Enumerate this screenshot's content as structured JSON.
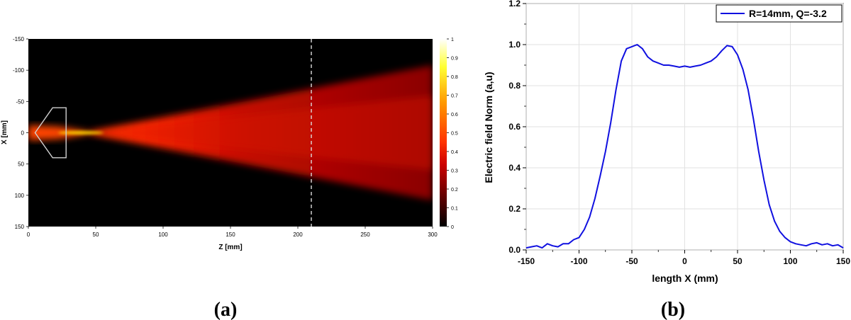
{
  "panel_a": {
    "caption": "(a)",
    "chart_data": {
      "type": "heatmap",
      "xlabel": "Z [mm]",
      "ylabel": "X [mm]",
      "xlim": [
        0,
        300
      ],
      "ylim": [
        -150,
        150
      ],
      "x_ticks": [
        "0",
        "50",
        "100",
        "150",
        "200",
        "250",
        "300"
      ],
      "y_ticks": [
        "-150",
        "-100",
        "-50",
        "0",
        "50",
        "100",
        "150"
      ],
      "colorbar": {
        "range": [
          0,
          1
        ],
        "ticks": [
          "1",
          "0.9",
          "0.8",
          "0.7",
          "0.6",
          "0.5",
          "0.4",
          "0.3",
          "0.2",
          "0.1",
          "0"
        ],
        "colormap": "hot"
      },
      "lens_outline": {
        "z_range": [
          5,
          28
        ],
        "x_range": [
          -40,
          40
        ],
        "color": "#d0d0d0"
      },
      "focus_z": 45,
      "beam_half_width_at_300": 108,
      "dashed_line_z": 210
    }
  },
  "panel_b": {
    "caption": "(b)",
    "chart_data": {
      "type": "line",
      "xlabel": "length X (mm)",
      "ylabel": "Electric field Norm (a,u)",
      "xlim": [
        -150,
        150
      ],
      "ylim": [
        0,
        1.2
      ],
      "x_ticks": [
        "-150",
        "-100",
        "-50",
        "0",
        "50",
        "100",
        "150"
      ],
      "y_ticks": [
        "0.0",
        "0.2",
        "0.4",
        "0.6",
        "0.8",
        "1.0",
        "1.2"
      ],
      "grid": true,
      "legend_position": "top-right",
      "series": [
        {
          "name": "R=14mm, Q=-3.2",
          "color": "#1010e0",
          "x": [
            -150,
            -145,
            -140,
            -135,
            -130,
            -125,
            -120,
            -115,
            -110,
            -105,
            -100,
            -95,
            -90,
            -85,
            -80,
            -75,
            -70,
            -65,
            -60,
            -55,
            -50,
            -45,
            -40,
            -35,
            -30,
            -25,
            -20,
            -15,
            -10,
            -5,
            0,
            5,
            10,
            15,
            20,
            25,
            30,
            35,
            40,
            45,
            50,
            55,
            60,
            65,
            70,
            75,
            80,
            85,
            90,
            95,
            100,
            105,
            110,
            115,
            120,
            125,
            130,
            135,
            140,
            145,
            150
          ],
          "y": [
            0.01,
            0.015,
            0.02,
            0.01,
            0.03,
            0.02,
            0.015,
            0.03,
            0.03,
            0.05,
            0.06,
            0.1,
            0.16,
            0.25,
            0.36,
            0.48,
            0.62,
            0.78,
            0.92,
            0.98,
            0.99,
            1.0,
            0.98,
            0.94,
            0.92,
            0.91,
            0.9,
            0.9,
            0.895,
            0.89,
            0.895,
            0.89,
            0.895,
            0.9,
            0.91,
            0.92,
            0.94,
            0.97,
            0.995,
            0.99,
            0.95,
            0.88,
            0.78,
            0.64,
            0.48,
            0.34,
            0.22,
            0.14,
            0.09,
            0.06,
            0.04,
            0.03,
            0.025,
            0.02,
            0.03,
            0.035,
            0.025,
            0.03,
            0.02,
            0.025,
            0.01
          ]
        }
      ]
    }
  }
}
